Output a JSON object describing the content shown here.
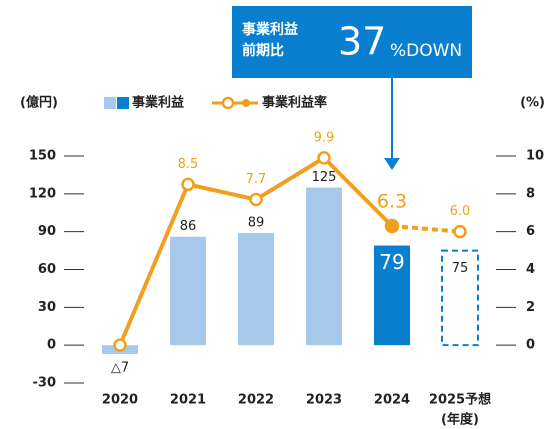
{
  "chart_data": {
    "type": "bar_line",
    "y_axis_label": "(億円)",
    "y2_axis_label": "(%)",
    "x_axis_label": "(年度)",
    "annotation": {
      "lines": [
        "事業利益",
        "前期比"
      ],
      "value": 37,
      "unit": "%DOWN"
    },
    "categories": [
      "2020",
      "2021",
      "2022",
      "2023",
      "2024",
      "2025予想"
    ],
    "series": [
      {
        "name": "事業利益",
        "type": "bar",
        "color": "#a7c9ec",
        "colors": [
          "#a7c9ec",
          "#a7c9ec",
          "#a7c9ec",
          "#a7c9ec",
          "#0a7fd0",
          "#0a7fd0"
        ],
        "styles": [
          "solid",
          "solid",
          "solid",
          "solid",
          "solid",
          "dashed"
        ],
        "values": [
          -7,
          86,
          89,
          125,
          79,
          75
        ],
        "value_labels": [
          "△7",
          "86",
          "89",
          "125",
          "79",
          "75"
        ]
      },
      {
        "name": "事業利益率",
        "type": "line",
        "axis": "y2",
        "color": "#f0a01e",
        "styles": [
          "solid",
          "solid",
          "solid",
          "solid",
          "solid",
          "dashed"
        ],
        "values": [
          0,
          8.5,
          7.7,
          9.9,
          6.3,
          6.0
        ],
        "value_labels": [
          null,
          "8.5",
          "7.7",
          "9.9",
          "6.3",
          "6.0"
        ]
      }
    ],
    "ylim": [
      -30,
      150
    ],
    "yticks": [
      -30,
      0,
      30,
      60,
      90,
      120,
      150
    ],
    "y2lim": [
      -2,
      10
    ],
    "y2ticks": [
      0,
      2,
      4,
      6,
      8,
      10
    ]
  }
}
